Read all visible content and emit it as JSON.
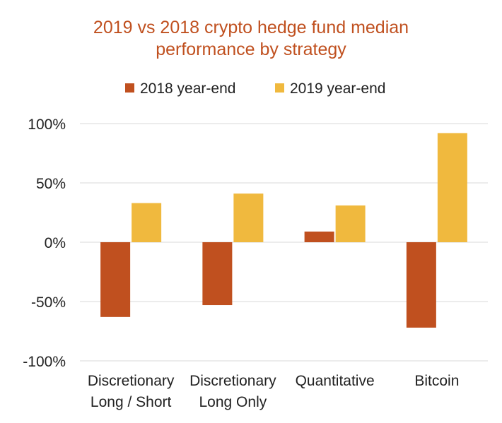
{
  "chart_data": {
    "type": "bar",
    "title": [
      "2019 vs 2018 crypto hedge fund median",
      "performance by strategy"
    ],
    "categories": [
      [
        "Discretionary",
        "Long / Short"
      ],
      [
        "Discretionary",
        "Long Only"
      ],
      [
        "Quantitative"
      ],
      [
        "Bitcoin"
      ]
    ],
    "series": [
      {
        "name": "2018 year-end",
        "color": "#C0501F",
        "values": [
          -63,
          -53,
          9,
          -72
        ]
      },
      {
        "name": "2019 year-end",
        "color": "#F0B93E",
        "values": [
          33,
          41,
          31,
          92
        ]
      }
    ],
    "ylim": [
      -100,
      100
    ],
    "yticks": [
      100,
      50,
      0,
      -50,
      -100
    ],
    "ytick_labels": [
      "100%",
      "50%",
      "0%",
      "-50%",
      "-100%"
    ],
    "grid": true,
    "legend_position": "top"
  }
}
